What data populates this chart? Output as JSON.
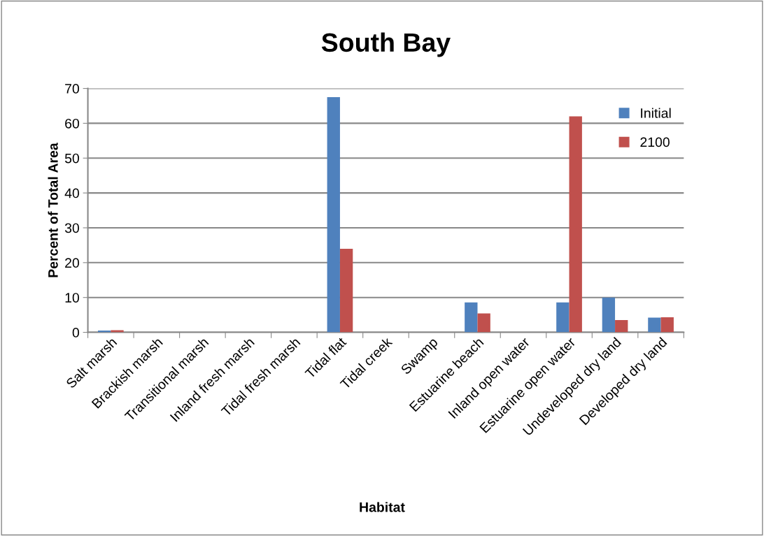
{
  "chart_data": {
    "type": "bar",
    "title": "South Bay",
    "xlabel": "Habitat",
    "ylabel": "Percent of Total Area",
    "categories": [
      "Salt marsh",
      "Brackish marsh",
      "Transitional marsh",
      "Inland fresh marsh",
      "Tidal fresh marsh",
      "Tidal flat",
      "Tidal creek",
      "Swamp",
      "Estuarine beach",
      "Inland open water",
      "Estuarine open water",
      "Undeveloped dry land",
      "Developed dry land"
    ],
    "series": [
      {
        "name": "Initial",
        "color": "#4f81bd",
        "values": [
          0.5,
          0,
          0,
          0,
          0,
          67.5,
          0,
          0,
          8.6,
          0,
          8.6,
          10,
          4.2
        ]
      },
      {
        "name": "2100",
        "color": "#c0504d",
        "values": [
          0.6,
          0,
          0,
          0,
          0,
          24,
          0,
          0,
          5.4,
          0,
          62,
          3.5,
          4.3
        ]
      }
    ],
    "ylim": [
      0,
      70
    ],
    "yticks": [
      0,
      10,
      20,
      30,
      40,
      50,
      60,
      70
    ],
    "grid": "y",
    "legend": "top right"
  }
}
